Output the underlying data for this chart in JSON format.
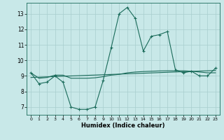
{
  "xlabel": "Humidex (Indice chaleur)",
  "background_color": "#c8e8e8",
  "grid_color": "#a8cece",
  "line_color": "#1a6b5a",
  "xlim": [
    -0.5,
    23.5
  ],
  "ylim": [
    6.5,
    13.7
  ],
  "yticks": [
    7,
    8,
    9,
    10,
    11,
    12,
    13
  ],
  "xticks": [
    0,
    1,
    2,
    3,
    4,
    5,
    6,
    7,
    8,
    9,
    10,
    11,
    12,
    13,
    14,
    15,
    16,
    17,
    18,
    19,
    20,
    21,
    22,
    23
  ],
  "curve1_x": [
    0,
    1,
    2,
    3,
    4,
    5,
    6,
    7,
    8,
    9,
    10,
    11,
    12,
    13,
    14,
    15,
    16,
    17,
    18,
    19,
    20,
    21,
    22,
    23
  ],
  "curve1_y": [
    9.2,
    8.5,
    8.6,
    9.0,
    8.6,
    7.0,
    6.85,
    6.85,
    7.0,
    8.7,
    10.8,
    13.0,
    13.4,
    12.7,
    10.6,
    11.55,
    11.65,
    11.85,
    9.4,
    9.2,
    9.3,
    9.0,
    9.0,
    9.5
  ],
  "curve2_x": [
    0,
    1,
    2,
    3,
    4,
    5,
    6,
    7,
    8,
    9,
    10,
    11,
    12,
    13,
    14,
    15,
    16,
    17,
    18,
    19,
    20,
    21,
    22,
    23
  ],
  "curve2_y": [
    9.2,
    8.85,
    8.9,
    9.05,
    9.05,
    8.85,
    8.85,
    8.85,
    8.88,
    8.95,
    9.05,
    9.1,
    9.2,
    9.25,
    9.28,
    9.3,
    9.32,
    9.33,
    9.33,
    9.33,
    9.3,
    9.25,
    9.2,
    9.2
  ],
  "curve3_x": [
    0,
    23
  ],
  "curve3_y": [
    8.9,
    9.35
  ]
}
